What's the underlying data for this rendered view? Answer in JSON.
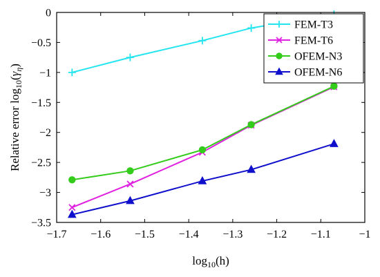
{
  "chart_data": {
    "type": "line",
    "xlabel": "log10(h)",
    "ylabel": "Relative error log10(γη)",
    "xlim": [
      -1.7,
      -1.0
    ],
    "ylim": [
      -3.5,
      0
    ],
    "xticks": [
      -1.7,
      -1.6,
      -1.5,
      -1.4,
      -1.3,
      -1.2,
      -1.1,
      -1.0
    ],
    "xtick_labels": [
      "−1.7",
      "−1.6",
      "−1.5",
      "−1.4",
      "−1.3",
      "−1.2",
      "−1.1",
      "−1"
    ],
    "yticks": [
      0,
      -0.5,
      -1,
      -1.5,
      -2,
      -2.5,
      -3,
      -3.5
    ],
    "ytick_labels": [
      "0",
      "−0.5",
      "−1",
      "−1.5",
      "−2",
      "−2.5",
      "−3",
      "−3.5"
    ],
    "grid": false,
    "legend_position": "top-right",
    "x": [
      -1.665,
      -1.533,
      -1.369,
      -1.258,
      -1.07
    ],
    "series": [
      {
        "name": "FEM-T3",
        "color": "#22e5f0",
        "marker": "plus",
        "values": [
          -1.0,
          -0.75,
          -0.47,
          -0.26,
          -0.03
        ]
      },
      {
        "name": "FEM-T6",
        "color": "#e020e0",
        "marker": "x",
        "values": [
          -3.25,
          -2.86,
          -2.33,
          -1.88,
          -1.24
        ]
      },
      {
        "name": "OFEM-N3",
        "color": "#33cc1a",
        "marker": "circle",
        "values": [
          -2.79,
          -2.64,
          -2.29,
          -1.87,
          -1.23
        ]
      },
      {
        "name": "OFEM-N6",
        "color": "#1010cc",
        "marker": "triangle",
        "values": [
          -3.37,
          -3.14,
          -2.81,
          -2.62,
          -2.19
        ]
      }
    ]
  }
}
